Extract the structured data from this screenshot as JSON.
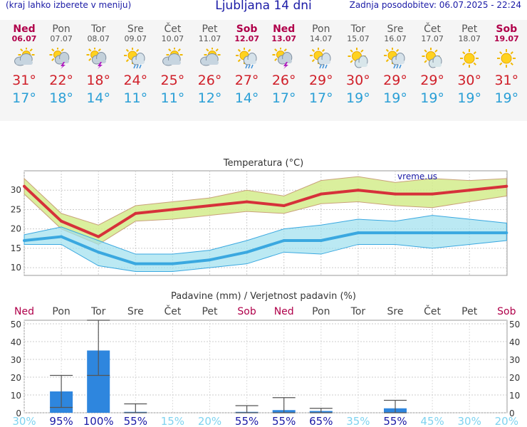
{
  "header": {
    "menu_hint": "(kraj lahko izberete v meniju)",
    "title": "Ljubljana 14 dni",
    "updated": "Zadnja posodobitev: 06.07.2025 - 22:24"
  },
  "days": [
    {
      "name": "Ned",
      "date": "06.07",
      "icon": "partly-cloudy-icon",
      "max": "31°",
      "min": "17°",
      "weekend": true
    },
    {
      "name": "Pon",
      "date": "07.07",
      "icon": "thunderstorm-icon",
      "max": "22°",
      "min": "18°",
      "weekend": false
    },
    {
      "name": "Tor",
      "date": "08.07",
      "icon": "thunderstorm-icon",
      "max": "18°",
      "min": "14°",
      "weekend": false
    },
    {
      "name": "Sre",
      "date": "09.07",
      "icon": "sun-rain-icon",
      "max": "24°",
      "min": "11°",
      "weekend": false
    },
    {
      "name": "Čet",
      "date": "10.07",
      "icon": "partly-cloudy-icon",
      "max": "25°",
      "min": "11°",
      "weekend": false
    },
    {
      "name": "Pet",
      "date": "11.07",
      "icon": "partly-cloudy-icon",
      "max": "26°",
      "min": "12°",
      "weekend": false
    },
    {
      "name": "Sob",
      "date": "12.07",
      "icon": "sun-rain-icon",
      "max": "27°",
      "min": "14°",
      "weekend": true
    },
    {
      "name": "Ned",
      "date": "13.07",
      "icon": "thunderstorm-icon",
      "max": "26°",
      "min": "17°",
      "weekend": true
    },
    {
      "name": "Pon",
      "date": "14.07",
      "icon": "sun-rain-icon",
      "max": "29°",
      "min": "17°",
      "weekend": false
    },
    {
      "name": "Tor",
      "date": "15.07",
      "icon": "mostly-sunny-icon",
      "max": "30°",
      "min": "19°",
      "weekend": false
    },
    {
      "name": "Sre",
      "date": "16.07",
      "icon": "sun-rain-icon",
      "max": "29°",
      "min": "19°",
      "weekend": false
    },
    {
      "name": "Čet",
      "date": "17.07",
      "icon": "mostly-sunny-icon",
      "max": "29°",
      "min": "19°",
      "weekend": false
    },
    {
      "name": "Pet",
      "date": "18.07",
      "icon": "sun-icon",
      "max": "30°",
      "min": "19°",
      "weekend": false
    },
    {
      "name": "Sob",
      "date": "19.07",
      "icon": "sun-icon",
      "max": "31°",
      "min": "19°",
      "weekend": true
    }
  ],
  "colors": {
    "weekend": "#b0004a",
    "max_line": "#d6313a",
    "max_band": "#d4ec8c",
    "min_line": "#3aa8e0",
    "min_band": "#9ee0ee",
    "precip_bar": "#2e86de",
    "prob_high": "#1a1aa6",
    "prob_low": "#7fd3f0"
  },
  "chart_data": [
    {
      "type": "line",
      "title": "Temperatura (°C)",
      "watermark": "vreme.us",
      "ylim": [
        8,
        35
      ],
      "yticks": [
        "10",
        "15",
        "20",
        "25",
        "30"
      ],
      "categories": [
        "06.07",
        "07.07",
        "08.07",
        "09.07",
        "10.07",
        "11.07",
        "12.07",
        "13.07",
        "14.07",
        "15.07",
        "16.07",
        "17.07",
        "18.07",
        "19.07"
      ],
      "series": [
        {
          "name": "Max",
          "values": [
            31,
            22,
            18,
            24,
            25,
            26,
            27,
            26,
            29,
            30,
            29,
            29,
            30,
            31
          ],
          "band_low": [
            29,
            20,
            16,
            22,
            22.5,
            23.5,
            24.5,
            24,
            26.5,
            27,
            26,
            25.5,
            27,
            28.5
          ],
          "band_high": [
            33,
            24,
            21,
            26,
            27,
            28,
            30,
            28.5,
            32.5,
            33.5,
            32,
            33,
            32.5,
            33
          ]
        },
        {
          "name": "Min",
          "values": [
            17,
            18,
            14,
            11,
            11,
            12,
            14,
            17,
            17,
            19,
            19,
            19,
            19,
            19
          ],
          "band_low": [
            16,
            16,
            10.5,
            9,
            9,
            10,
            11,
            14,
            13.5,
            16,
            16,
            15,
            16,
            17
          ],
          "band_high": [
            18.5,
            20.5,
            17,
            13.5,
            13.5,
            14.5,
            17,
            20,
            21,
            22.5,
            22,
            23.5,
            22.5,
            21.5
          ]
        }
      ]
    },
    {
      "type": "bar",
      "title": "Padavine (mm) / Verjetnost padavin (%)",
      "ylim": [
        0,
        52
      ],
      "yticks": [
        "0",
        "10",
        "20",
        "30",
        "40",
        "50"
      ],
      "categories": [
        "Ned",
        "Pon",
        "Tor",
        "Sre",
        "Čet",
        "Pet",
        "Sob",
        "Ned",
        "Pon",
        "Tor",
        "Sre",
        "Čet",
        "Pet",
        "Sob"
      ],
      "weekend": [
        true,
        false,
        false,
        false,
        false,
        false,
        true,
        true,
        false,
        false,
        false,
        false,
        false,
        true
      ],
      "values": [
        0,
        12,
        35,
        0.5,
        0,
        0,
        0.5,
        1.5,
        1,
        0,
        2.5,
        0,
        0,
        0
      ],
      "error_low": [
        0,
        3,
        21,
        0,
        0,
        0,
        0,
        0,
        0,
        0,
        0,
        0,
        0,
        0
      ],
      "error_high": [
        0,
        21,
        52,
        5,
        0,
        0,
        4,
        8.5,
        2.5,
        0,
        7,
        0,
        0,
        0
      ],
      "probability": [
        "30%",
        "95%",
        "100%",
        "55%",
        "15%",
        "20%",
        "55%",
        "55%",
        "65%",
        "35%",
        "55%",
        "45%",
        "30%",
        "20%"
      ],
      "probability_values": [
        30,
        95,
        100,
        55,
        15,
        20,
        55,
        55,
        65,
        35,
        55,
        45,
        30,
        20
      ]
    }
  ]
}
